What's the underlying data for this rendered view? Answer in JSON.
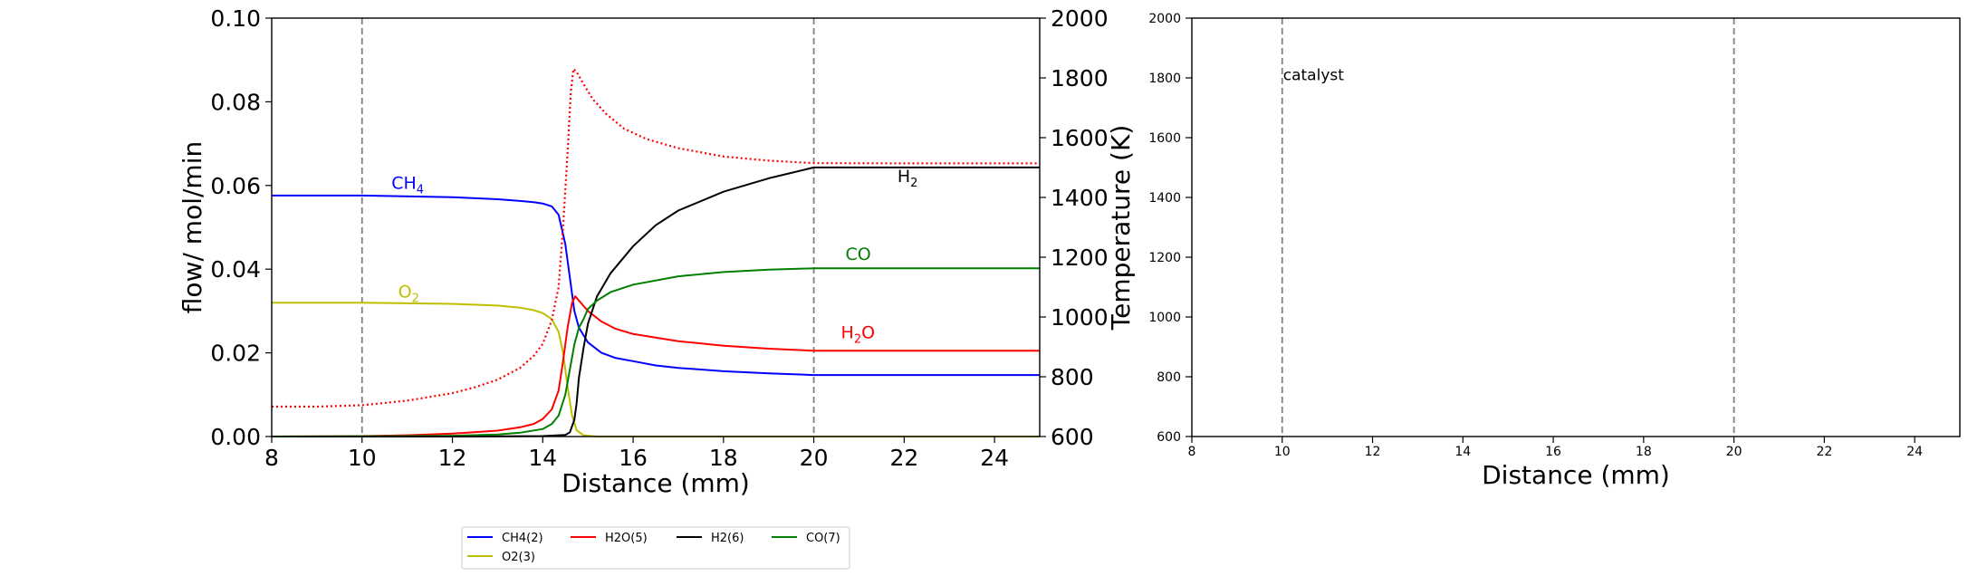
{
  "chart_data": [
    {
      "type": "line",
      "xlabel": "Distance (mm)",
      "ylabel": "flow/ mol/min",
      "y2label": "Temperature (K)",
      "xlim": [
        8,
        25
      ],
      "ylim": [
        0,
        0.1
      ],
      "y2lim": [
        600,
        2000
      ],
      "xticks": [
        8,
        10,
        12,
        14,
        16,
        18,
        20,
        22,
        24
      ],
      "xtick_labels": [
        "8",
        "10",
        "12",
        "14",
        "16",
        "18",
        "20",
        "22",
        "24"
      ],
      "yticks": [
        0,
        0.02,
        0.04,
        0.06,
        0.08,
        0.1
      ],
      "ytick_labels": [
        "0.00",
        "0.02",
        "0.04",
        "0.06",
        "0.08",
        "0.10"
      ],
      "y2ticks": [
        600,
        800,
        1000,
        1200,
        1400,
        1600,
        1800,
        2000
      ],
      "y2tick_labels": [
        "600",
        "800",
        "1000",
        "1200",
        "1400",
        "1600",
        "1800",
        "2000"
      ],
      "vlines": [
        10,
        20
      ],
      "grid": false,
      "series": [
        {
          "name": "CH4(2)",
          "color": "#0000ff",
          "axis": "left",
          "x": [
            8,
            10,
            12,
            13,
            13.5,
            13.8,
            14,
            14.2,
            14.35,
            14.5,
            14.6,
            14.7,
            14.8,
            15,
            15.3,
            15.6,
            16,
            16.5,
            17,
            18,
            19,
            20,
            22,
            25
          ],
          "y": [
            0.0576,
            0.0576,
            0.0572,
            0.0567,
            0.0563,
            0.056,
            0.0557,
            0.055,
            0.053,
            0.046,
            0.038,
            0.03,
            0.026,
            0.0225,
            0.02,
            0.0188,
            0.018,
            0.017,
            0.0164,
            0.0156,
            0.0151,
            0.0147,
            0.0147,
            0.0147
          ]
        },
        {
          "name": "O2(3)",
          "color": "#bfbf00",
          "axis": "left",
          "x": [
            8,
            10,
            12,
            13,
            13.5,
            13.8,
            14,
            14.2,
            14.35,
            14.45,
            14.55,
            14.65,
            14.75,
            14.9,
            15.2,
            16,
            25
          ],
          "y": [
            0.032,
            0.032,
            0.0317,
            0.0313,
            0.0308,
            0.0302,
            0.0295,
            0.028,
            0.025,
            0.02,
            0.012,
            0.005,
            0.0015,
            0.0003,
            0,
            0,
            0
          ]
        },
        {
          "name": "H2O(5)",
          "color": "#ff0000",
          "axis": "left",
          "x": [
            8,
            10,
            11,
            12,
            13,
            13.5,
            13.8,
            14,
            14.2,
            14.35,
            14.45,
            14.55,
            14.65,
            14.72,
            14.8,
            15,
            15.3,
            15.6,
            16,
            17,
            18,
            19,
            20,
            22,
            25
          ],
          "y": [
            0,
            0.0001,
            0.0003,
            0.0007,
            0.0014,
            0.0022,
            0.003,
            0.0042,
            0.0065,
            0.011,
            0.018,
            0.026,
            0.032,
            0.0335,
            0.0325,
            0.03,
            0.0275,
            0.0258,
            0.0245,
            0.0228,
            0.0217,
            0.021,
            0.0205,
            0.0205,
            0.0205
          ]
        },
        {
          "name": "H2(6)",
          "color": "#000000",
          "axis": "left",
          "x": [
            8,
            12,
            14,
            14.5,
            14.6,
            14.7,
            14.75,
            14.8,
            14.9,
            15,
            15.2,
            15.5,
            16,
            16.5,
            17,
            18,
            19,
            20,
            22,
            25
          ],
          "y": [
            0,
            0,
            0.0001,
            0.0004,
            0.001,
            0.004,
            0.008,
            0.014,
            0.021,
            0.027,
            0.0335,
            0.039,
            0.0455,
            0.0505,
            0.054,
            0.0585,
            0.0617,
            0.0643,
            0.0643,
            0.0643
          ]
        },
        {
          "name": "CO(7)",
          "color": "#008000",
          "axis": "left",
          "x": [
            8,
            11,
            12,
            13,
            13.5,
            14,
            14.2,
            14.35,
            14.5,
            14.6,
            14.7,
            14.8,
            14.9,
            15,
            15.2,
            15.5,
            16,
            17,
            18,
            19,
            20,
            22,
            25
          ],
          "y": [
            0,
            0.0001,
            0.0002,
            0.0005,
            0.0009,
            0.0018,
            0.003,
            0.005,
            0.01,
            0.016,
            0.022,
            0.026,
            0.028,
            0.0305,
            0.0325,
            0.0345,
            0.0363,
            0.0383,
            0.0393,
            0.0399,
            0.0402,
            0.0402,
            0.0402
          ]
        },
        {
          "name": "",
          "color": "#ff0000",
          "axis": "right",
          "dash": "dotted",
          "x": [
            8,
            9,
            10,
            11,
            12,
            12.5,
            13,
            13.5,
            13.8,
            14,
            14.2,
            14.35,
            14.45,
            14.55,
            14.62,
            14.68,
            14.75,
            14.9,
            15.1,
            15.4,
            15.8,
            16.3,
            17,
            18,
            19,
            20,
            22,
            25
          ],
          "y": [
            700,
            700,
            705,
            720,
            745,
            765,
            790,
            830,
            870,
            910,
            990,
            1100,
            1300,
            1550,
            1750,
            1830,
            1820,
            1780,
            1730,
            1680,
            1630,
            1595,
            1565,
            1537,
            1523,
            1515,
            1514,
            1514
          ]
        }
      ],
      "annotations": [
        {
          "base": "CH",
          "sub": "4",
          "x": 10.65,
          "y": 0.0592,
          "color": "#0000ff"
        },
        {
          "base": "O",
          "sub": "2",
          "x": 10.8,
          "y": 0.0332,
          "color": "#bfbf00"
        },
        {
          "base": "H",
          "sub": "2",
          "x": 21.85,
          "y": 0.0608,
          "color": "#000000"
        },
        {
          "base": "CO",
          "sub": "",
          "x": 20.7,
          "y": 0.0422,
          "color": "#008000"
        },
        {
          "base": "H",
          "sub": "2",
          "tail": "O",
          "x": 20.6,
          "y": 0.0235,
          "color": "#ff0000"
        }
      ],
      "legend": {
        "placement": "below",
        "entries": [
          {
            "label": "CH4(2)",
            "color": "#0000ff"
          },
          {
            "label": "H2O(5)",
            "color": "#ff0000"
          },
          {
            "label": "H2(6)",
            "color": "#000000"
          },
          {
            "label": "CO(7)",
            "color": "#008000"
          },
          {
            "label": "O2(3)",
            "color": "#bfbf00"
          }
        ]
      }
    },
    {
      "type": "line",
      "xlabel": "Distance (mm)",
      "xlim": [
        8,
        25
      ],
      "ylim": [
        600,
        2000
      ],
      "xticks": [
        8,
        10,
        12,
        14,
        16,
        18,
        20,
        22,
        24
      ],
      "xtick_labels": [
        "8",
        "10",
        "12",
        "14",
        "16",
        "18",
        "20",
        "22",
        "24"
      ],
      "yticks": [
        600,
        800,
        1000,
        1200,
        1400,
        1600,
        1800,
        2000
      ],
      "ytick_labels": [
        "600",
        "800",
        "1000",
        "1200",
        "1400",
        "1600",
        "1800",
        "2000"
      ],
      "vlines": [
        10,
        20
      ],
      "grid": false,
      "annotations": [
        {
          "text": "catalyst",
          "x": 10,
          "y": 1810
        }
      ],
      "series": []
    }
  ]
}
